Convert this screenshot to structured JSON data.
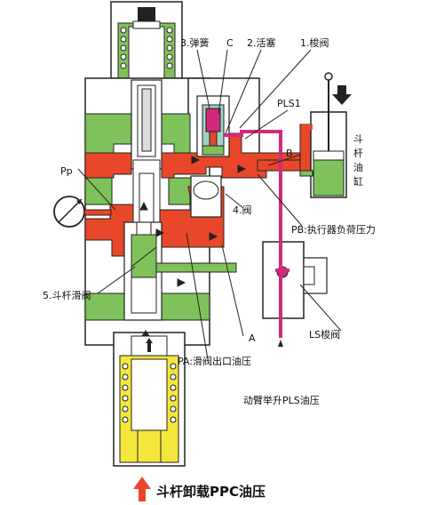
{
  "labels": {
    "spring": "3.弹簧",
    "c": "C",
    "piston": "2.活塞",
    "shuttle": "1.梭阀",
    "pls1": "PLS1",
    "b": "B",
    "pp": "Pp",
    "valve4": "4.阀",
    "pb": "PB:执行器负荷压力",
    "spool5": "5.斗杆滑阀",
    "a": "A",
    "ls_valve": "LS梭阀",
    "pa": "PA:滑阀出口油压",
    "boom_pls": "动臂举升PLS油压",
    "cyl1": "斗",
    "cyl2": "杆",
    "cyl3": "油",
    "cyl4": "缸",
    "bottom": "斗杆卸载PPC油压"
  },
  "colors": {
    "red": "#e8472a",
    "green": "#7fc15a",
    "yellow": "#f5e63c",
    "magenta": "#d2297b",
    "gray": "#ffffff",
    "line": "#222222"
  }
}
